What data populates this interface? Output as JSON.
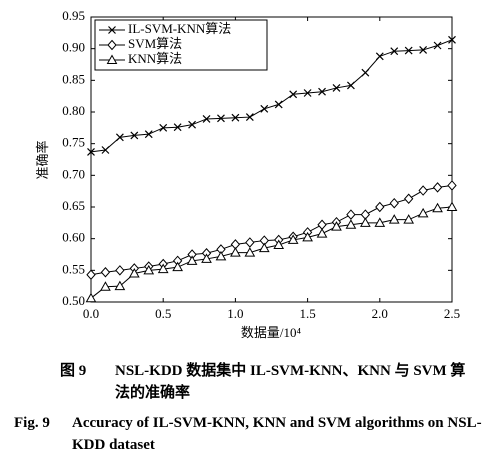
{
  "chart_data": {
    "type": "line",
    "xlabel": "数据量/10⁴",
    "ylabel": "准确率",
    "x": [
      0.0,
      0.1,
      0.2,
      0.3,
      0.4,
      0.5,
      0.6,
      0.7,
      0.8,
      0.9,
      1.0,
      1.1,
      1.2,
      1.3,
      1.4,
      1.5,
      1.6,
      1.7,
      1.8,
      1.9,
      2.0,
      2.1,
      2.2,
      2.3,
      2.4,
      2.5
    ],
    "series": [
      {
        "name": "IL-SVM-KNN算法",
        "color": "#000000",
        "marker": "x",
        "values": [
          0.737,
          0.74,
          0.76,
          0.763,
          0.765,
          0.775,
          0.776,
          0.78,
          0.789,
          0.79,
          0.791,
          0.792,
          0.805,
          0.812,
          0.828,
          0.83,
          0.832,
          0.838,
          0.842,
          0.862,
          0.888,
          0.896,
          0.897,
          0.898,
          0.905,
          0.914
        ]
      },
      {
        "name": "SVM算法",
        "color": "#000000",
        "marker": "diamond",
        "values": [
          0.543,
          0.547,
          0.55,
          0.553,
          0.556,
          0.56,
          0.565,
          0.575,
          0.577,
          0.583,
          0.591,
          0.594,
          0.597,
          0.598,
          0.603,
          0.61,
          0.622,
          0.626,
          0.638,
          0.638,
          0.65,
          0.656,
          0.663,
          0.676,
          0.681,
          0.684
        ]
      },
      {
        "name": "KNN算法",
        "color": "#000000",
        "marker": "triangle",
        "values": [
          0.506,
          0.524,
          0.525,
          0.545,
          0.55,
          0.552,
          0.555,
          0.565,
          0.568,
          0.572,
          0.578,
          0.578,
          0.585,
          0.59,
          0.598,
          0.602,
          0.608,
          0.619,
          0.622,
          0.625,
          0.625,
          0.63,
          0.63,
          0.64,
          0.648,
          0.65
        ]
      }
    ],
    "xlim": [
      0,
      2.5
    ],
    "xticks": [
      {
        "value": 0,
        "label": "0.0"
      },
      0.5,
      {
        "value": 1,
        "label": "1.0"
      },
      1.5,
      {
        "value": 2,
        "label": "2.0"
      },
      2.5
    ],
    "ylim": [
      0.5,
      0.95
    ],
    "yticks": [
      {
        "value": 0.5,
        "label": "0.50"
      },
      0.55,
      {
        "value": 0.6,
        "label": "0.60"
      },
      0.65,
      {
        "value": 0.7,
        "label": "0.70"
      },
      0.75,
      {
        "value": 0.8,
        "label": "0.80"
      },
      0.85,
      {
        "value": 0.9,
        "label": "0.90"
      },
      0.95
    ],
    "legend": "upper left",
    "grid": false
  },
  "caption": {
    "cn_label": "图 9",
    "cn_text": "NSL-KDD 数据集中 IL-SVM-KNN、KNN 与 SVM 算法的准确率",
    "en_label": "Fig. 9",
    "en_text": "Accuracy of IL-SVM-KNN, KNN and SVM algorithms on NSL-KDD dataset"
  }
}
